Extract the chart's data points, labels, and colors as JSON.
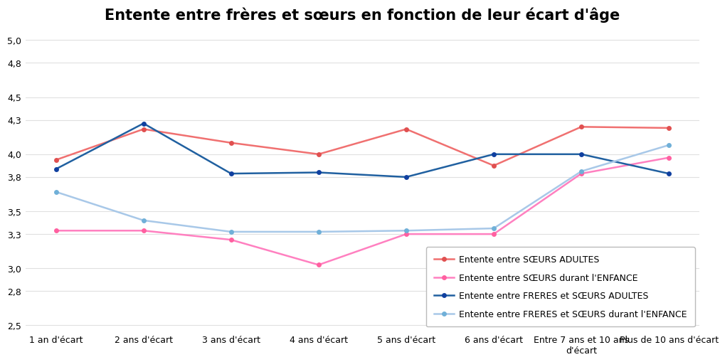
{
  "title": "Entente entre frères et sœurs en fonction de leur écart d'âge",
  "x_labels": [
    "1 an d'écart",
    "2 ans d'écart",
    "3 ans d'écart",
    "4 ans d'écart",
    "5 ans d'écart",
    "6 ans d'écart",
    "Entre 7 ans et 10 ans\nd'écart",
    "Plus de 10 ans d'écart"
  ],
  "series": [
    {
      "label": "Entente entre SŒURS ADULTES",
      "color": "#F07070",
      "marker_color": "#E05050",
      "values": [
        3.95,
        4.22,
        4.1,
        4.0,
        4.22,
        3.9,
        4.24,
        4.23
      ]
    },
    {
      "label": "Entente entre SŒURS durant l'ENFANCE",
      "color": "#FF80C0",
      "marker_color": "#FF60A0",
      "values": [
        3.33,
        3.33,
        3.25,
        3.03,
        3.3,
        3.3,
        3.83,
        3.97
      ]
    },
    {
      "label": "Entente entre FRERES et SŒURS ADULTES",
      "color": "#2060A0",
      "marker_color": "#1040A0",
      "values": [
        3.87,
        4.27,
        3.83,
        3.84,
        3.8,
        4.0,
        4.0,
        3.83
      ]
    },
    {
      "label": "Entente entre FRERES et SŒURS durant l'ENFANCE",
      "color": "#A8C8E8",
      "marker_color": "#70B0D8",
      "values": [
        3.67,
        3.42,
        3.32,
        3.32,
        3.33,
        3.35,
        3.85,
        4.08
      ]
    }
  ],
  "ytick_labels": [
    "5,0",
    "4,8",
    "4,5",
    "4,3",
    "4,0",
    "3,8",
    "3,5",
    "3,3",
    "3,0",
    "2,8",
    "2,5"
  ],
  "ytick_positions": [
    5.0,
    4.8,
    4.5,
    4.3,
    4.0,
    3.8,
    3.5,
    3.3,
    3.0,
    2.8,
    2.5
  ],
  "ylim": [
    2.45,
    5.08
  ],
  "background_color": "#ffffff",
  "grid_color": "#E0E0E0",
  "title_fontsize": 15,
  "legend_fontsize": 9,
  "tick_fontsize": 9
}
